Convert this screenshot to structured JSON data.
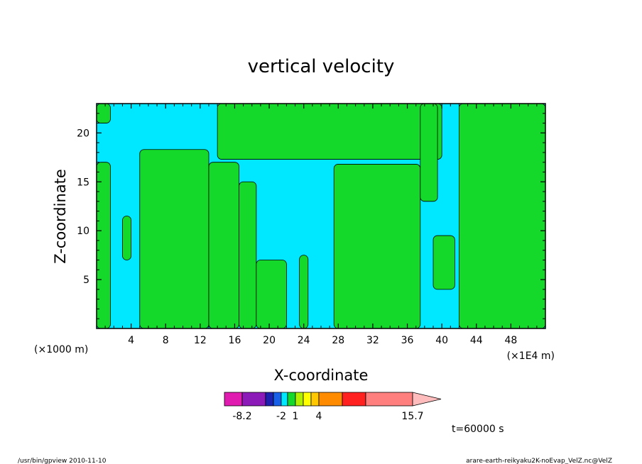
{
  "chart_data": {
    "type": "heatmap",
    "title": "vertical velocity",
    "xlabel": "X-coordinate",
    "ylabel": "Z-coordinate",
    "x_unit_left": "(×1000 m)",
    "x_unit_right": "(×1E4 m)",
    "xlim": [
      0,
      52
    ],
    "ylim": [
      0,
      23
    ],
    "x_ticks": [
      "4",
      "8",
      "12",
      "16",
      "20",
      "24",
      "28",
      "32",
      "36",
      "40",
      "44",
      "48"
    ],
    "y_ticks": [
      "5",
      "10",
      "15",
      "20"
    ],
    "background_class": "negative (cyan)",
    "positive_regions": [
      {
        "x": [
          0.0,
          1.6
        ],
        "z": [
          21.0,
          23.0
        ]
      },
      {
        "x": [
          0.0,
          1.6
        ],
        "z": [
          0.0,
          17.0
        ]
      },
      {
        "x": [
          3.0,
          4.0
        ],
        "z": [
          7.0,
          11.5
        ]
      },
      {
        "x": [
          5.0,
          13.0
        ],
        "z": [
          0.0,
          18.3
        ]
      },
      {
        "x": [
          13.0,
          16.5
        ],
        "z": [
          0.0,
          17.0
        ]
      },
      {
        "x": [
          16.5,
          18.5
        ],
        "z": [
          0.0,
          15.0
        ]
      },
      {
        "x": [
          18.5,
          22.0
        ],
        "z": [
          0.0,
          7.0
        ]
      },
      {
        "x": [
          23.5,
          24.5
        ],
        "z": [
          0.0,
          7.5
        ]
      },
      {
        "x": [
          14.0,
          40.0
        ],
        "z": [
          17.3,
          23.0
        ]
      },
      {
        "x": [
          27.5,
          37.5
        ],
        "z": [
          0.0,
          16.8
        ]
      },
      {
        "x": [
          37.5,
          39.5
        ],
        "z": [
          13.0,
          23.0
        ]
      },
      {
        "x": [
          39.0,
          41.5
        ],
        "z": [
          4.0,
          9.5
        ]
      },
      {
        "x": [
          42.0,
          52.0
        ],
        "z": [
          0.0,
          23.0
        ]
      }
    ],
    "colorbar": {
      "colors": [
        "#e01cb0",
        "#8c1ab8",
        "#1e20b0",
        "#1860e8",
        "#00e8ff",
        "#14d82a",
        "#b0f000",
        "#ffff00",
        "#ffc800",
        "#ff8c00",
        "#ff2020",
        "#ff7f7f",
        "#ffbcbc"
      ],
      "labels": [
        "-8.2",
        "-2",
        "1",
        "4",
        "15.7"
      ]
    },
    "time_label": "t=60000 s"
  },
  "footer": {
    "left": "/usr/bin/gpview  2010-11-10",
    "right": "arare-earth-reikyaku2K-noEvap_VelZ.nc@VelZ"
  }
}
